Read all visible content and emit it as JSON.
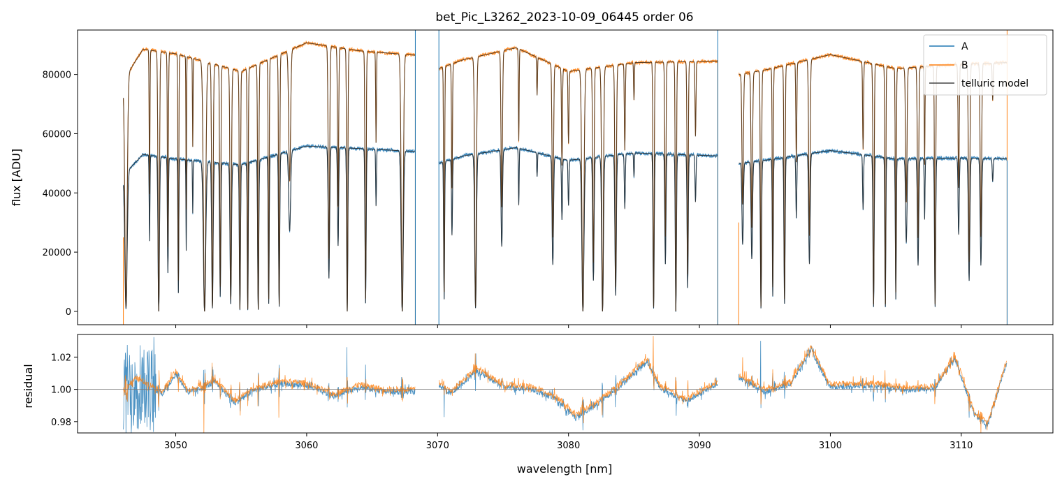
{
  "chart_data": [
    {
      "type": "line",
      "panel": "top",
      "title": "bet_Pic_L3262_2023-10-09_06445  order 06",
      "xlabel": "",
      "ylabel": "flux [ADU]",
      "xlim": [
        3042.5,
        3117.0
      ],
      "ylim": [
        -4500,
        95000
      ],
      "yticks": [
        0,
        20000,
        40000,
        60000,
        80000
      ],
      "ytick_labels": [
        "0",
        "20000",
        "40000",
        "60000",
        "80000"
      ],
      "xticks": [
        3050,
        3060,
        3070,
        3080,
        3090,
        3100,
        3110
      ],
      "legend": {
        "placement": "top-right",
        "entries": [
          "A",
          "B",
          "telluric model"
        ]
      },
      "segments": [
        {
          "x_start": 3046.0,
          "x_end": 3068.3
        },
        {
          "x_start": 3070.1,
          "x_end": 3091.4
        },
        {
          "x_start": 3093.0,
          "x_end": 3113.5
        }
      ],
      "series": [
        {
          "name": "A",
          "color": "#1f77b4",
          "continuum": [
            [
              3046.0,
              46000
            ],
            [
              3047.5,
              53000
            ],
            [
              3050,
              51500
            ],
            [
              3055,
              49500
            ],
            [
              3060,
              55800
            ],
            [
              3064,
              55000
            ],
            [
              3068.3,
              54000
            ],
            [
              3070.1,
              50000
            ],
            [
              3072,
              52500
            ],
            [
              3076,
              55300
            ],
            [
              3080,
              51000
            ],
            [
              3085,
              53500
            ],
            [
              3091.4,
              52500
            ],
            [
              3093.0,
              50000
            ],
            [
              3095,
              51000
            ],
            [
              3100,
              54300
            ],
            [
              3105,
              51500
            ],
            [
              3110,
              51800
            ],
            [
              3113.5,
              51500
            ]
          ]
        },
        {
          "name": "B",
          "color": "#ff7f0e",
          "continuum": [
            [
              3046.0,
              78000
            ],
            [
              3047.5,
              88500
            ],
            [
              3050,
              87000
            ],
            [
              3055,
              81000
            ],
            [
              3060,
              90700
            ],
            [
              3064,
              88000
            ],
            [
              3068.3,
              86500
            ],
            [
              3070.1,
              82000
            ],
            [
              3072,
              85000
            ],
            [
              3076,
              89000
            ],
            [
              3080,
              81000
            ],
            [
              3085,
              84000
            ],
            [
              3091.4,
              84500
            ],
            [
              3093.0,
              80000
            ],
            [
              3095,
              81500
            ],
            [
              3100,
              86700
            ],
            [
              3105,
              82000
            ],
            [
              3110,
              83500
            ],
            [
              3113.5,
              84000
            ]
          ]
        },
        {
          "name": "telluric model",
          "color": "#555555",
          "absorption_lines": [
            [
              3046.2,
              0.98,
              0.25
            ],
            [
              3048.0,
              0.55,
              0.08
            ],
            [
              3048.7,
              1.0,
              0.15
            ],
            [
              3049.4,
              0.75,
              0.1
            ],
            [
              3050.2,
              0.88,
              0.09
            ],
            [
              3050.8,
              0.6,
              0.06
            ],
            [
              3051.3,
              0.35,
              0.06
            ],
            [
              3052.2,
              1.0,
              0.25
            ],
            [
              3052.8,
              0.98,
              0.15
            ],
            [
              3053.4,
              0.9,
              0.12
            ],
            [
              3054.2,
              0.95,
              0.15
            ],
            [
              3054.9,
              0.99,
              0.12
            ],
            [
              3055.5,
              0.99,
              0.1
            ],
            [
              3056.3,
              0.99,
              0.12
            ],
            [
              3057.1,
              0.95,
              0.1
            ],
            [
              3057.9,
              0.97,
              0.12
            ],
            [
              3058.7,
              0.5,
              0.2
            ],
            [
              3061.7,
              0.8,
              0.15
            ],
            [
              3062.4,
              0.6,
              0.12
            ],
            [
              3063.1,
              1.0,
              0.12
            ],
            [
              3064.5,
              0.95,
              0.12
            ],
            [
              3065.3,
              0.35,
              0.08
            ],
            [
              3067.3,
              1.0,
              0.22
            ],
            [
              3070.5,
              0.92,
              0.1
            ],
            [
              3071.1,
              0.5,
              0.1
            ],
            [
              3072.9,
              0.98,
              0.18
            ],
            [
              3074.9,
              0.6,
              0.15
            ],
            [
              3076.2,
              0.35,
              0.08
            ],
            [
              3077.6,
              0.15,
              0.08
            ],
            [
              3078.8,
              0.7,
              0.15
            ],
            [
              3079.5,
              0.4,
              0.1
            ],
            [
              3080.0,
              0.3,
              0.1
            ],
            [
              3081.1,
              1.0,
              0.22
            ],
            [
              3081.9,
              0.8,
              0.14
            ],
            [
              3082.6,
              1.0,
              0.18
            ],
            [
              3083.6,
              0.9,
              0.15
            ],
            [
              3084.3,
              0.35,
              0.1
            ],
            [
              3085.0,
              0.15,
              0.08
            ],
            [
              3086.5,
              0.98,
              0.12
            ],
            [
              3087.4,
              0.7,
              0.12
            ],
            [
              3088.2,
              1.0,
              0.12
            ],
            [
              3089.1,
              0.85,
              0.12
            ],
            [
              3089.7,
              0.3,
              0.1
            ],
            [
              3093.3,
              0.55,
              0.15
            ],
            [
              3094.0,
              0.65,
              0.15
            ],
            [
              3094.7,
              0.98,
              0.12
            ],
            [
              3095.6,
              0.9,
              0.1
            ],
            [
              3096.5,
              0.95,
              0.12
            ],
            [
              3097.4,
              0.4,
              0.1
            ],
            [
              3098.4,
              0.7,
              0.15
            ],
            [
              3102.5,
              0.35,
              0.1
            ],
            [
              3103.3,
              0.97,
              0.12
            ],
            [
              3104.2,
              0.97,
              0.1
            ],
            [
              3105.0,
              0.92,
              0.1
            ],
            [
              3105.8,
              0.55,
              0.15
            ],
            [
              3106.7,
              0.7,
              0.14
            ],
            [
              3107.2,
              0.4,
              0.08
            ],
            [
              3108.0,
              0.97,
              0.12
            ],
            [
              3109.8,
              0.5,
              0.12
            ],
            [
              3110.6,
              0.8,
              0.15
            ],
            [
              3111.5,
              0.7,
              0.15
            ],
            [
              3112.4,
              0.15,
              0.1
            ]
          ]
        }
      ]
    },
    {
      "type": "line",
      "panel": "bottom",
      "title": "",
      "xlabel": "wavelength [nm]",
      "ylabel": "residual",
      "xlim": [
        3042.5,
        3117.0
      ],
      "ylim": [
        0.973,
        1.034
      ],
      "yticks": [
        0.98,
        1.0,
        1.02
      ],
      "ytick_labels": [
        "0.98",
        "1.00",
        "1.02"
      ],
      "xticks": [
        3050,
        3060,
        3070,
        3080,
        3090,
        3100,
        3110
      ],
      "xtick_labels": [
        "3050",
        "3060",
        "3070",
        "3080",
        "3090",
        "3100",
        "3110"
      ],
      "reference_line": 1.0,
      "series": [
        {
          "name": "A",
          "color": "#1f77b4",
          "noise": 0.003
        },
        {
          "name": "B",
          "color": "#ff7f0e",
          "noise": 0.003
        }
      ],
      "trend": [
        [
          3046.0,
          0.999
        ],
        [
          3047.0,
          1.006
        ],
        [
          3049.0,
          0.998
        ],
        [
          3050.0,
          1.01
        ],
        [
          3051.0,
          0.998
        ],
        [
          3053.0,
          1.005
        ],
        [
          3054.5,
          0.992
        ],
        [
          3056.0,
          1.0
        ],
        [
          3058.0,
          1.004
        ],
        [
          3060.0,
          1.003
        ],
        [
          3062.0,
          0.996
        ],
        [
          3064.0,
          1.002
        ],
        [
          3066.0,
          0.999
        ],
        [
          3068.3,
          0.999
        ],
        [
          3070.1,
          1.003
        ],
        [
          3071.0,
          0.998
        ],
        [
          3073.0,
          1.012
        ],
        [
          3075.0,
          1.002
        ],
        [
          3077.0,
          1.001
        ],
        [
          3079.0,
          0.995
        ],
        [
          3080.5,
          0.983
        ],
        [
          3082.0,
          0.99
        ],
        [
          3084.0,
          1.003
        ],
        [
          3086.0,
          1.018
        ],
        [
          3087.0,
          1.001
        ],
        [
          3089.0,
          0.993
        ],
        [
          3091.4,
          1.004
        ],
        [
          3093.0,
          1.008
        ],
        [
          3095.0,
          0.999
        ],
        [
          3097.0,
          1.004
        ],
        [
          3098.5,
          1.025
        ],
        [
          3100.0,
          1.002
        ],
        [
          3103.0,
          1.003
        ],
        [
          3106.0,
          1.0
        ],
        [
          3108.0,
          1.001
        ],
        [
          3109.5,
          1.02
        ],
        [
          3111.0,
          0.985
        ],
        [
          3112.0,
          0.978
        ],
        [
          3113.5,
          1.018
        ]
      ]
    }
  ],
  "colors": {
    "A": "#1f77b4",
    "B": "#ff7f0e",
    "model": "#444444",
    "axes": "#000000"
  }
}
